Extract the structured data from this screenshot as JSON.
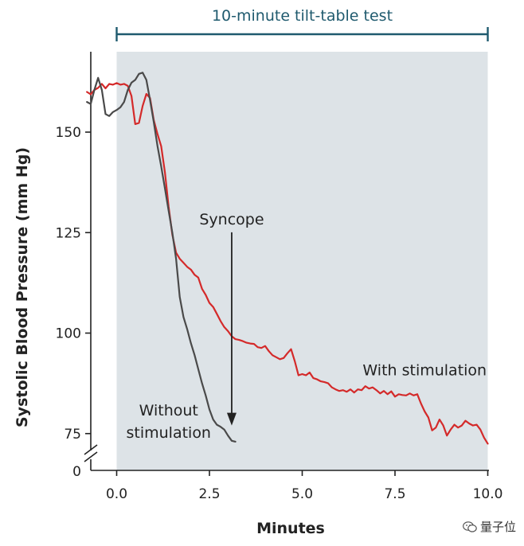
{
  "chart_data": {
    "type": "line",
    "title": "",
    "xlabel": "Minutes",
    "ylabel": "Systolic Blood Pressure (mm Hg)",
    "xlim": [
      -0.7,
      10.0
    ],
    "ylim": [
      70,
      167
    ],
    "axis_break": true,
    "x_ticks": [
      0.0,
      2.5,
      5.0,
      7.5,
      10.0
    ],
    "x_tick_labels": [
      "0.0",
      "2.5",
      "5.0",
      "7.5",
      "10.0"
    ],
    "y_ticks": [
      150,
      125,
      100,
      75
    ],
    "y_tick_labels": [
      "150",
      "125",
      "100",
      "75"
    ],
    "y_zero_label": "0",
    "shaded_region": {
      "x_start": 0.0,
      "x_end": 10.0,
      "label": "10-minute tilt-table test",
      "color": "#dde3e7"
    },
    "series": [
      {
        "name": "With stimulation",
        "color": "#d42a2a",
        "points": [
          [
            -0.8,
            160.0
          ],
          [
            -0.7,
            159.4
          ],
          [
            -0.6,
            160.5
          ],
          [
            -0.5,
            161.0
          ],
          [
            -0.4,
            162.0
          ],
          [
            -0.3,
            160.9
          ],
          [
            -0.2,
            162.0
          ],
          [
            -0.1,
            161.8
          ],
          [
            0.0,
            162.2
          ],
          [
            0.1,
            161.8
          ],
          [
            0.2,
            162.0
          ],
          [
            0.3,
            161.5
          ],
          [
            0.4,
            159.0
          ],
          [
            0.5,
            152.0
          ],
          [
            0.6,
            152.3
          ],
          [
            0.7,
            156.5
          ],
          [
            0.8,
            159.5
          ],
          [
            0.9,
            158.5
          ],
          [
            1.0,
            153.0
          ],
          [
            1.1,
            149.5
          ],
          [
            1.2,
            146.5
          ],
          [
            1.3,
            140.0
          ],
          [
            1.4,
            131.5
          ],
          [
            1.5,
            124.5
          ],
          [
            1.6,
            120.0
          ],
          [
            1.7,
            118.5
          ],
          [
            1.8,
            117.5
          ],
          [
            1.9,
            116.5
          ],
          [
            2.0,
            115.8
          ],
          [
            2.1,
            114.5
          ],
          [
            2.2,
            113.8
          ],
          [
            2.3,
            111.0
          ],
          [
            2.4,
            109.5
          ],
          [
            2.5,
            107.5
          ],
          [
            2.6,
            106.5
          ],
          [
            2.7,
            104.8
          ],
          [
            2.8,
            103.0
          ],
          [
            2.9,
            101.5
          ],
          [
            3.0,
            100.5
          ],
          [
            3.1,
            99.2
          ],
          [
            3.2,
            98.5
          ],
          [
            3.3,
            98.3
          ],
          [
            3.4,
            98.0
          ],
          [
            3.5,
            97.6
          ],
          [
            3.6,
            97.4
          ],
          [
            3.7,
            97.3
          ],
          [
            3.8,
            96.5
          ],
          [
            3.9,
            96.3
          ],
          [
            4.0,
            96.8
          ],
          [
            4.1,
            95.5
          ],
          [
            4.2,
            94.5
          ],
          [
            4.3,
            94.0
          ],
          [
            4.4,
            93.5
          ],
          [
            4.5,
            93.8
          ],
          [
            4.6,
            95.0
          ],
          [
            4.7,
            96.0
          ],
          [
            4.8,
            93.0
          ],
          [
            4.9,
            89.5
          ],
          [
            5.0,
            89.8
          ],
          [
            5.1,
            89.5
          ],
          [
            5.2,
            90.2
          ],
          [
            5.3,
            88.8
          ],
          [
            5.4,
            88.5
          ],
          [
            5.5,
            88.0
          ],
          [
            5.6,
            87.8
          ],
          [
            5.7,
            87.5
          ],
          [
            5.8,
            86.5
          ],
          [
            5.9,
            86.0
          ],
          [
            6.0,
            85.6
          ],
          [
            6.1,
            85.8
          ],
          [
            6.2,
            85.4
          ],
          [
            6.3,
            86.0
          ],
          [
            6.4,
            85.2
          ],
          [
            6.5,
            86.0
          ],
          [
            6.6,
            85.8
          ],
          [
            6.7,
            86.8
          ],
          [
            6.8,
            86.2
          ],
          [
            6.9,
            86.5
          ],
          [
            7.0,
            85.8
          ],
          [
            7.1,
            85.0
          ],
          [
            7.2,
            85.6
          ],
          [
            7.3,
            84.8
          ],
          [
            7.4,
            85.5
          ],
          [
            7.5,
            84.2
          ],
          [
            7.6,
            84.8
          ],
          [
            7.7,
            84.6
          ],
          [
            7.8,
            84.5
          ],
          [
            7.9,
            85.0
          ],
          [
            8.0,
            84.5
          ],
          [
            8.1,
            84.8
          ],
          [
            8.2,
            82.5
          ],
          [
            8.3,
            80.5
          ],
          [
            8.4,
            79.0
          ],
          [
            8.5,
            75.8
          ],
          [
            8.6,
            76.5
          ],
          [
            8.7,
            78.5
          ],
          [
            8.8,
            77.0
          ],
          [
            8.9,
            74.5
          ],
          [
            9.0,
            76.0
          ],
          [
            9.1,
            77.2
          ],
          [
            9.2,
            76.5
          ],
          [
            9.3,
            77.0
          ],
          [
            9.4,
            78.2
          ],
          [
            9.5,
            77.5
          ],
          [
            9.6,
            77.0
          ],
          [
            9.7,
            77.2
          ],
          [
            9.8,
            76.0
          ],
          [
            9.9,
            74.0
          ],
          [
            10.0,
            72.5
          ]
        ]
      },
      {
        "name": "Without stimulation",
        "color": "#4a4a4a",
        "points": [
          [
            -0.8,
            157.5
          ],
          [
            -0.7,
            157.0
          ],
          [
            -0.6,
            160.5
          ],
          [
            -0.5,
            163.5
          ],
          [
            -0.4,
            160.5
          ],
          [
            -0.3,
            154.5
          ],
          [
            -0.2,
            154.0
          ],
          [
            -0.1,
            155.0
          ],
          [
            0.0,
            155.5
          ],
          [
            0.1,
            156.2
          ],
          [
            0.2,
            157.5
          ],
          [
            0.3,
            160.5
          ],
          [
            0.4,
            162.3
          ],
          [
            0.5,
            163.0
          ],
          [
            0.6,
            164.5
          ],
          [
            0.7,
            164.8
          ],
          [
            0.8,
            163.0
          ],
          [
            0.9,
            158.0
          ],
          [
            1.0,
            152.5
          ],
          [
            1.1,
            146.5
          ],
          [
            1.2,
            141.5
          ],
          [
            1.3,
            136.0
          ],
          [
            1.4,
            130.5
          ],
          [
            1.5,
            125.0
          ],
          [
            1.6,
            118.5
          ],
          [
            1.7,
            109.0
          ],
          [
            1.8,
            104.0
          ],
          [
            1.9,
            101.0
          ],
          [
            2.0,
            97.5
          ],
          [
            2.1,
            94.5
          ],
          [
            2.2,
            91.0
          ],
          [
            2.3,
            87.5
          ],
          [
            2.4,
            84.5
          ],
          [
            2.5,
            81.0
          ],
          [
            2.6,
            78.5
          ],
          [
            2.7,
            77.2
          ],
          [
            2.8,
            76.7
          ],
          [
            2.9,
            76.0
          ],
          [
            3.0,
            74.5
          ],
          [
            3.1,
            73.2
          ],
          [
            3.2,
            73.0
          ]
        ]
      }
    ],
    "annotations": [
      {
        "text": "Syncope",
        "x": 3.1,
        "y": 123.5,
        "arrow_to": [
          3.1,
          77.0
        ]
      },
      {
        "text": "Without",
        "x": 1.4,
        "y": 79.5
      },
      {
        "text": "stimulation",
        "x": 1.4,
        "y": 74.0
      },
      {
        "text": "With stimulation",
        "x": 8.3,
        "y": 89.5
      }
    ]
  },
  "watermark": {
    "text": "量子位",
    "icon": "wechat-icon"
  }
}
